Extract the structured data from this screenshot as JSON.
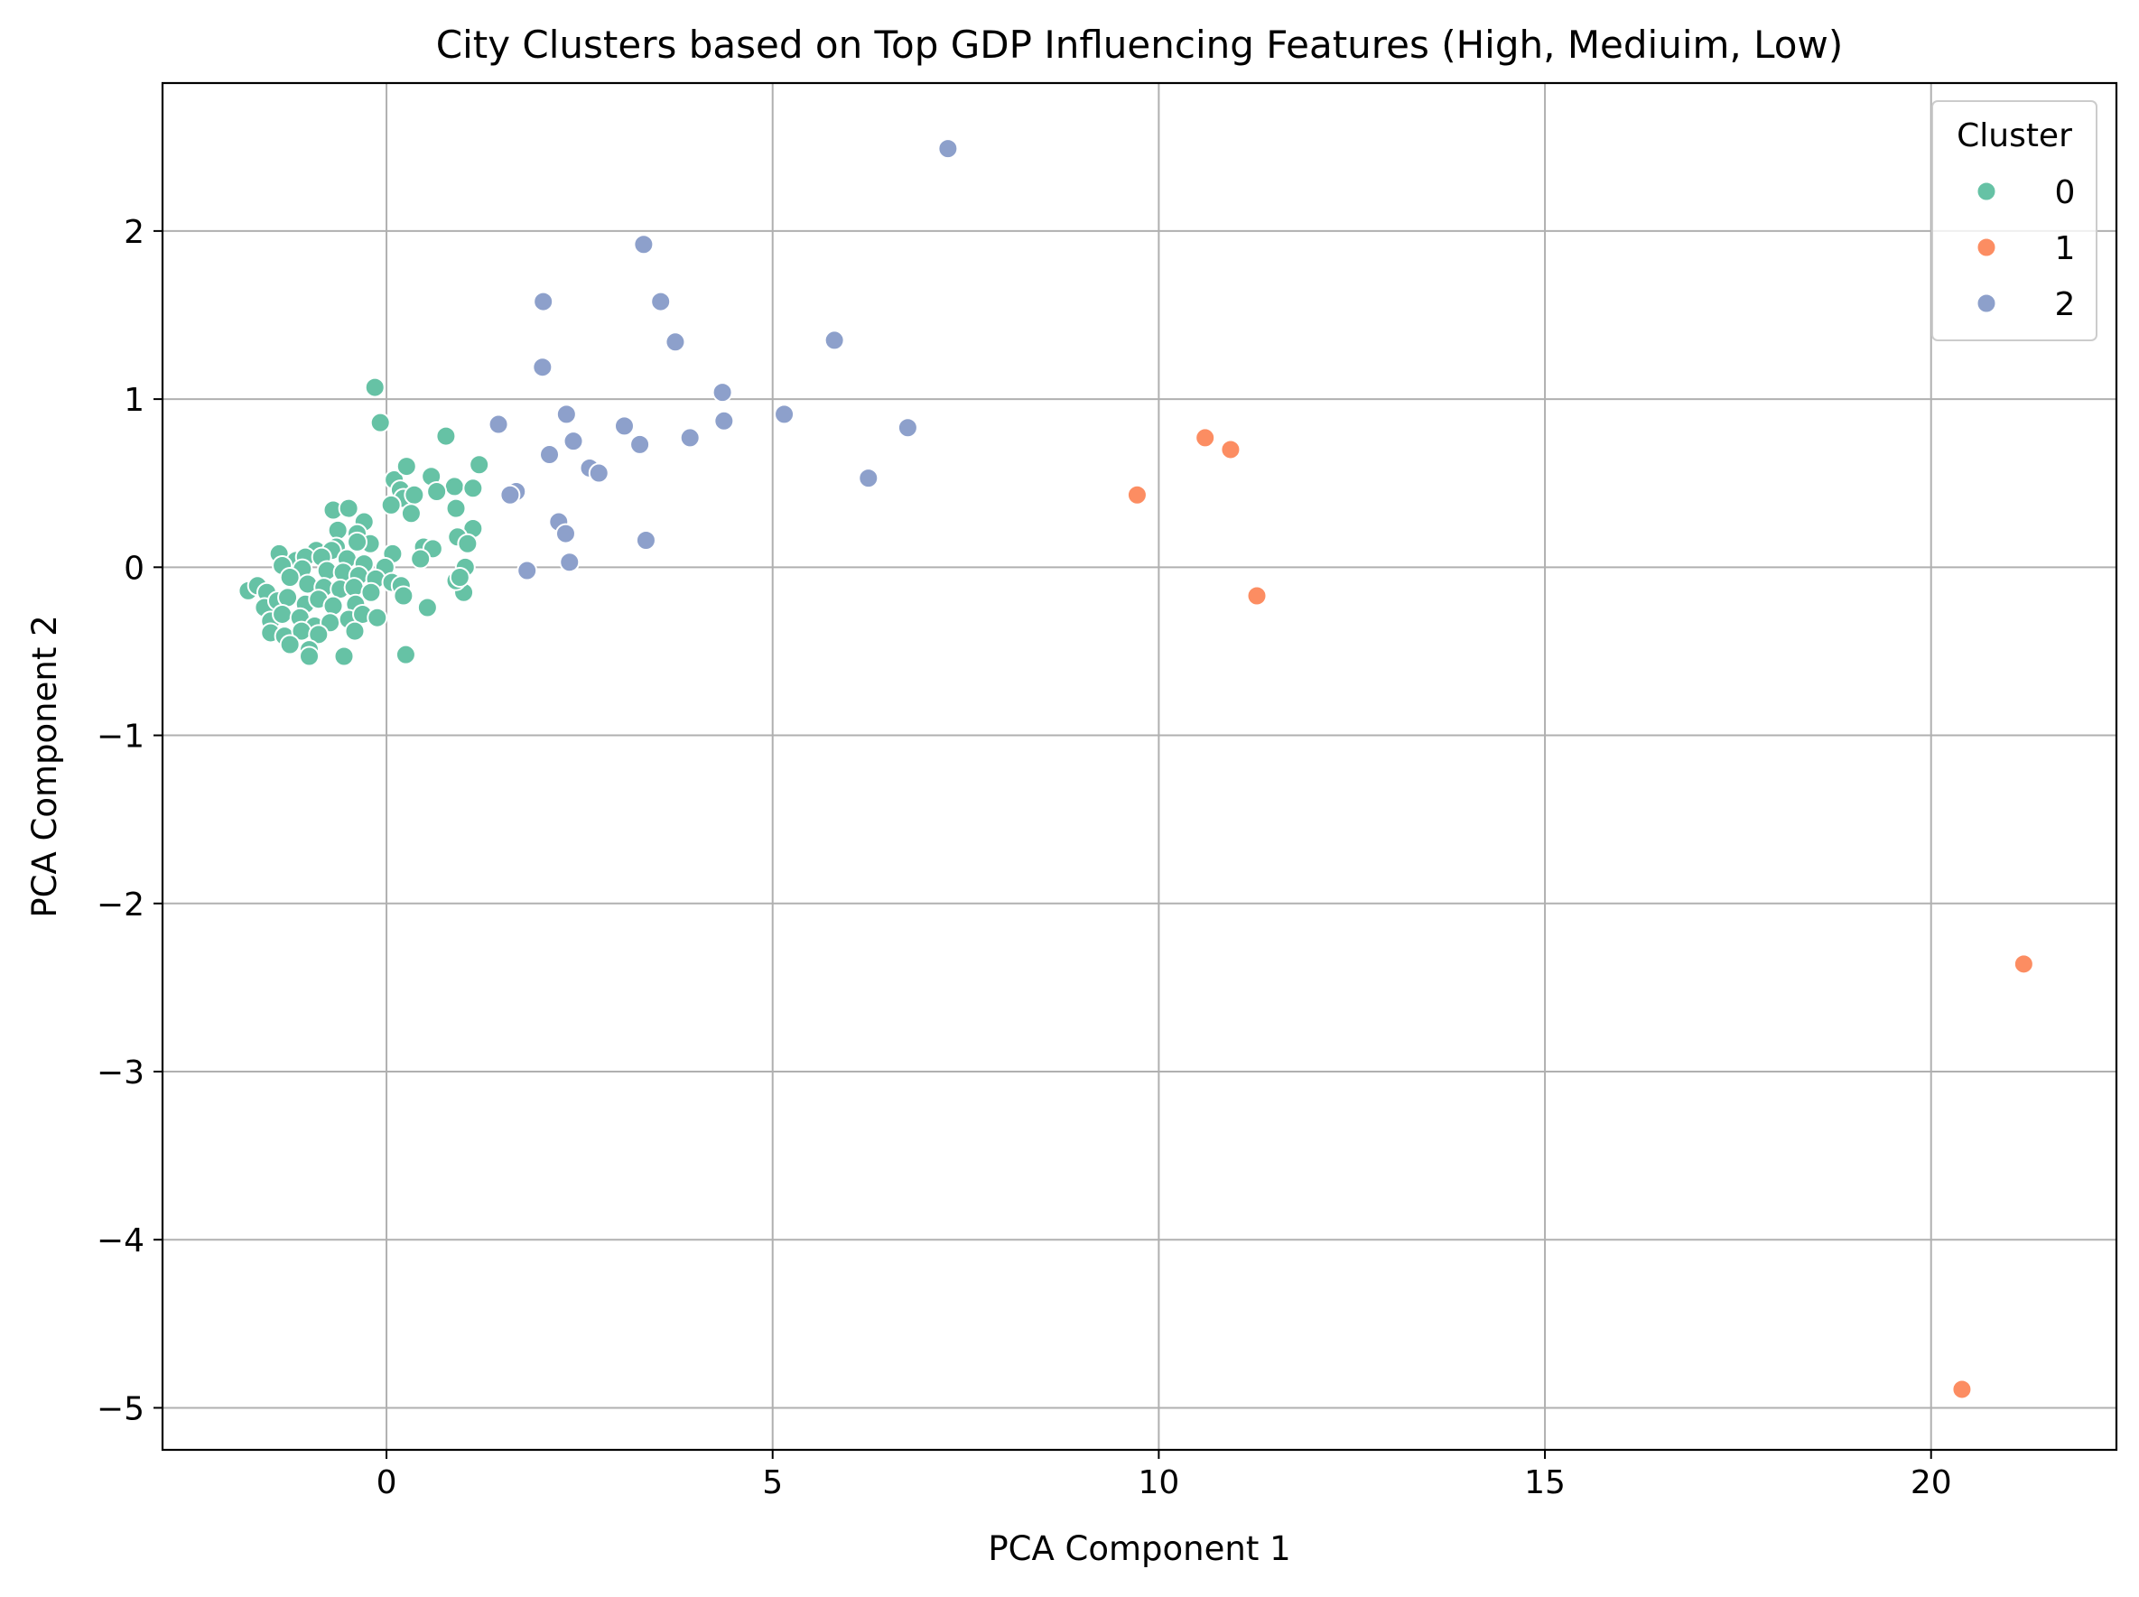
{
  "chart_data": {
    "type": "scatter",
    "title": "City Clusters based on Top GDP Influencing Features (High, Mediuim, Low)",
    "xlabel": "PCA Component 1",
    "ylabel": "PCA Component 2",
    "xlim": [
      -2.9,
      22.4
    ],
    "ylim": [
      -5.25,
      2.88
    ],
    "xticks": [
      0,
      5,
      10,
      15,
      20
    ],
    "xtick_labels": [
      "0",
      "5",
      "10",
      "15",
      "20"
    ],
    "yticks": [
      -5,
      -4,
      -3,
      -2,
      -1,
      0,
      1,
      2
    ],
    "ytick_labels": [
      "−5",
      "−4",
      "−3",
      "−2",
      "−1",
      "0",
      "1",
      "2"
    ],
    "grid": true,
    "legend": {
      "title": "Cluster",
      "position": "top-right"
    },
    "series": [
      {
        "name": "0",
        "color": "#66c2a5",
        "points": [
          [
            -0.15,
            1.07
          ],
          [
            -0.08,
            0.86
          ],
          [
            0.77,
            0.78
          ],
          [
            1.2,
            0.61
          ],
          [
            0.1,
            0.52
          ],
          [
            0.26,
            0.6
          ],
          [
            0.58,
            0.54
          ],
          [
            0.88,
            0.48
          ],
          [
            1.12,
            0.47
          ],
          [
            0.65,
            0.45
          ],
          [
            0.18,
            0.46
          ],
          [
            0.22,
            0.41
          ],
          [
            0.36,
            0.43
          ],
          [
            0.06,
            0.37
          ],
          [
            0.32,
            0.32
          ],
          [
            0.9,
            0.35
          ],
          [
            1.12,
            0.23
          ],
          [
            0.92,
            0.18
          ],
          [
            1.05,
            0.14
          ],
          [
            0.48,
            0.12
          ],
          [
            0.6,
            0.11
          ],
          [
            0.44,
            0.05
          ],
          [
            1.02,
            0.0
          ],
          [
            0.08,
            0.08
          ],
          [
            -0.69,
            0.34
          ],
          [
            -0.49,
            0.35
          ],
          [
            -0.63,
            0.22
          ],
          [
            -0.29,
            0.27
          ],
          [
            -0.38,
            0.2
          ],
          [
            -0.21,
            0.14
          ],
          [
            -0.38,
            0.15
          ],
          [
            -0.65,
            0.12
          ],
          [
            -0.91,
            0.1
          ],
          [
            -0.71,
            0.1
          ],
          [
            -1.39,
            0.08
          ],
          [
            -1.17,
            0.04
          ],
          [
            -1.05,
            0.06
          ],
          [
            -0.84,
            0.06
          ],
          [
            -0.51,
            0.05
          ],
          [
            -0.29,
            0.02
          ],
          [
            -0.02,
            0.0
          ],
          [
            -1.35,
            0.01
          ],
          [
            -1.09,
            -0.01
          ],
          [
            -0.77,
            -0.02
          ],
          [
            -0.56,
            -0.03
          ],
          [
            -0.36,
            -0.05
          ],
          [
            -0.14,
            -0.07
          ],
          [
            0.07,
            -0.09
          ],
          [
            0.19,
            -0.11
          ],
          [
            -1.79,
            -0.14
          ],
          [
            -1.67,
            -0.11
          ],
          [
            -1.55,
            -0.15
          ],
          [
            -1.25,
            -0.06
          ],
          [
            -1.02,
            -0.1
          ],
          [
            -0.81,
            -0.12
          ],
          [
            -0.6,
            -0.13
          ],
          [
            -0.42,
            -0.12
          ],
          [
            -0.2,
            -0.15
          ],
          [
            0.22,
            -0.17
          ],
          [
            1.0,
            -0.15
          ],
          [
            0.9,
            -0.08
          ],
          [
            0.95,
            -0.06
          ],
          [
            -1.58,
            -0.24
          ],
          [
            -1.41,
            -0.2
          ],
          [
            -1.28,
            -0.18
          ],
          [
            -1.05,
            -0.22
          ],
          [
            -0.88,
            -0.19
          ],
          [
            -0.69,
            -0.23
          ],
          [
            -0.4,
            -0.22
          ],
          [
            0.53,
            -0.24
          ],
          [
            -1.5,
            -0.32
          ],
          [
            -1.35,
            -0.28
          ],
          [
            -1.12,
            -0.3
          ],
          [
            -0.93,
            -0.35
          ],
          [
            -0.73,
            -0.33
          ],
          [
            -0.49,
            -0.31
          ],
          [
            -0.31,
            -0.28
          ],
          [
            -0.12,
            -0.3
          ],
          [
            -1.5,
            -0.39
          ],
          [
            -1.32,
            -0.41
          ],
          [
            -1.1,
            -0.38
          ],
          [
            -0.88,
            -0.4
          ],
          [
            -0.41,
            -0.38
          ],
          [
            -1.25,
            -0.46
          ],
          [
            -1.0,
            -0.49
          ],
          [
            -1.0,
            -0.53
          ],
          [
            -0.55,
            -0.53
          ],
          [
            0.25,
            -0.52
          ]
        ]
      },
      {
        "name": "1",
        "color": "#fc8d62",
        "points": [
          [
            9.72,
            0.43
          ],
          [
            10.6,
            0.77
          ],
          [
            10.93,
            0.7
          ],
          [
            11.27,
            -0.17
          ],
          [
            21.2,
            -2.36
          ],
          [
            20.4,
            -4.89
          ]
        ]
      },
      {
        "name": "2",
        "color": "#8da0cb",
        "points": [
          [
            7.27,
            2.49
          ],
          [
            3.33,
            1.92
          ],
          [
            2.03,
            1.58
          ],
          [
            3.55,
            1.58
          ],
          [
            5.8,
            1.35
          ],
          [
            3.74,
            1.34
          ],
          [
            2.02,
            1.19
          ],
          [
            4.35,
            1.04
          ],
          [
            2.33,
            0.91
          ],
          [
            5.15,
            0.91
          ],
          [
            1.45,
            0.85
          ],
          [
            4.37,
            0.87
          ],
          [
            3.08,
            0.84
          ],
          [
            6.75,
            0.83
          ],
          [
            3.93,
            0.77
          ],
          [
            2.42,
            0.75
          ],
          [
            3.28,
            0.73
          ],
          [
            2.11,
            0.67
          ],
          [
            2.63,
            0.59
          ],
          [
            2.75,
            0.56
          ],
          [
            6.24,
            0.53
          ],
          [
            1.68,
            0.45
          ],
          [
            1.6,
            0.43
          ],
          [
            2.23,
            0.27
          ],
          [
            2.32,
            0.2
          ],
          [
            3.36,
            0.16
          ],
          [
            2.37,
            0.03
          ],
          [
            1.82,
            -0.02
          ]
        ]
      }
    ]
  }
}
